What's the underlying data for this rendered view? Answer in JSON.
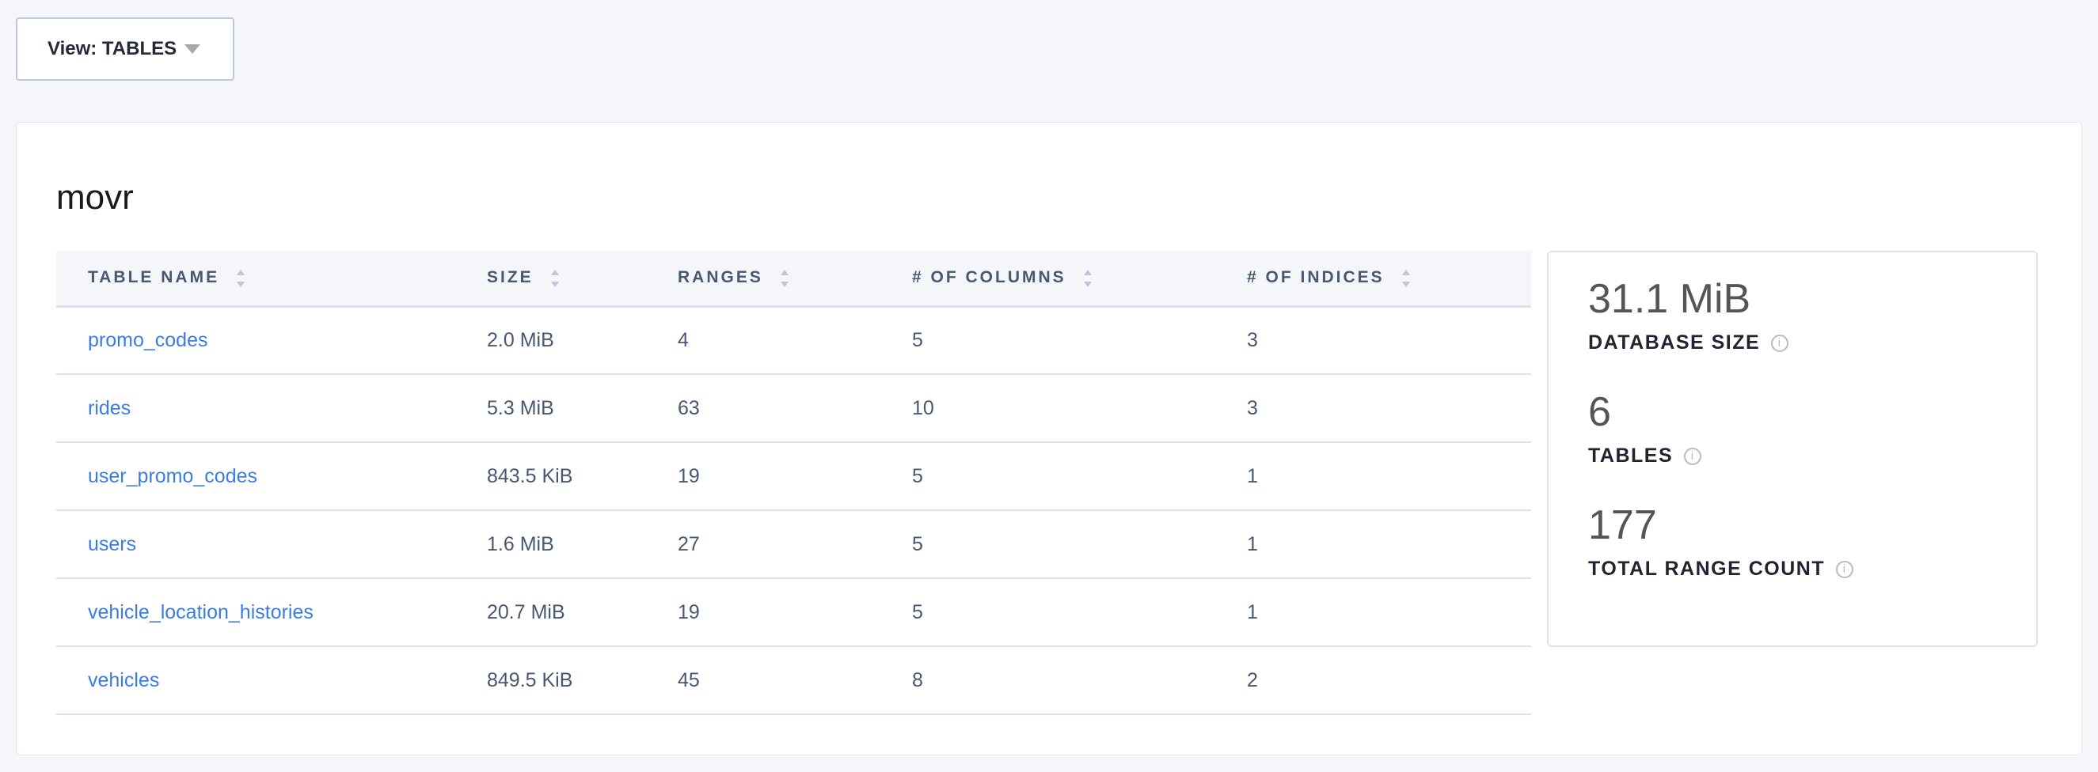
{
  "view_selector": {
    "label": "View: TABLES"
  },
  "database": {
    "name": "movr"
  },
  "table": {
    "columns": [
      "TABLE NAME",
      "SIZE",
      "RANGES",
      "# OF COLUMNS",
      "# OF INDICES"
    ],
    "rows": [
      [
        "promo_codes",
        "2.0 MiB",
        "4",
        "5",
        "3"
      ],
      [
        "rides",
        "5.3 MiB",
        "63",
        "10",
        "3"
      ],
      [
        "user_promo_codes",
        "843.5 KiB",
        "19",
        "5",
        "1"
      ],
      [
        "users",
        "1.6 MiB",
        "27",
        "5",
        "1"
      ],
      [
        "vehicle_location_histories",
        "20.7 MiB",
        "19",
        "5",
        "1"
      ],
      [
        "vehicles",
        "849.5 KiB",
        "45",
        "8",
        "2"
      ]
    ]
  },
  "stats": [
    {
      "value": "31.1 MiB",
      "label": "DATABASE SIZE"
    },
    {
      "value": "6",
      "label": "TABLES"
    },
    {
      "value": "177",
      "label": "TOTAL RANGE COUNT"
    }
  ],
  "colors": {
    "link": "#3a7de1",
    "header_bg": "#f5f6fa"
  }
}
